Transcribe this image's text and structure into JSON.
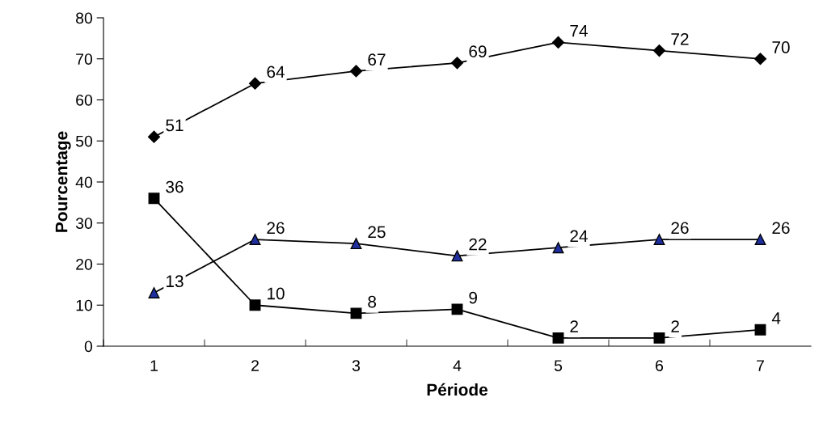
{
  "chart_data": {
    "type": "line",
    "xlabel": "Période",
    "ylabel": "Pourcentage",
    "categories": [
      "1",
      "2",
      "3",
      "4",
      "5",
      "6",
      "7"
    ],
    "series": [
      {
        "color": "#000000",
        "marker": "diamond",
        "values": [
          51,
          64,
          67,
          69,
          74,
          72,
          70
        ]
      },
      {
        "color": "#000000",
        "marker": "square",
        "values": [
          36,
          10,
          8,
          9,
          2,
          2,
          4
        ]
      },
      {
        "color": "#1f2f9f",
        "marker": "triangle",
        "values": [
          13,
          26,
          25,
          22,
          24,
          26,
          26
        ]
      }
    ],
    "ylim": [
      0,
      80
    ],
    "yticks": [
      0,
      10,
      20,
      30,
      40,
      50,
      60,
      70,
      80
    ],
    "grid": false,
    "legend": false,
    "data_labels": true,
    "line_style": "solid"
  }
}
